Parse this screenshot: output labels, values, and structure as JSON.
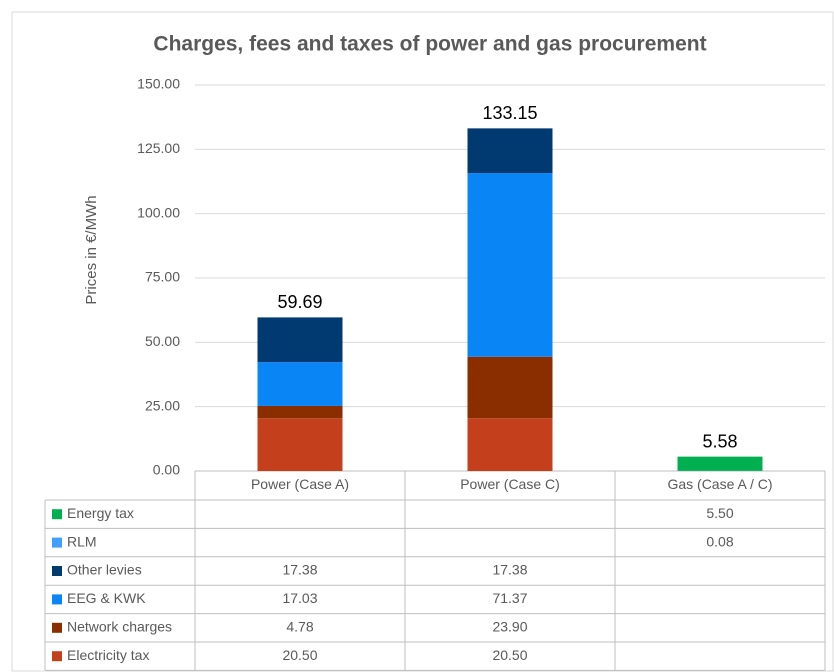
{
  "chart_data": {
    "type": "bar",
    "stacked": true,
    "title": "Charges, fees and taxes of power and gas procurement",
    "ylabel": "Prices in €/MWh",
    "categories": [
      "Power (Case A)",
      "Power (Case C)",
      "Gas (Case A / C)"
    ],
    "series": [
      {
        "name": "Energy tax",
        "color": "#00b050",
        "values": [
          null,
          null,
          5.5
        ],
        "value_labels": [
          null,
          null,
          "5.50"
        ]
      },
      {
        "name": "RLM",
        "color": "#3fa0ff",
        "values": [
          null,
          null,
          0.08
        ],
        "value_labels": [
          null,
          null,
          "0.08"
        ]
      },
      {
        "name": "Other levies",
        "color": "#003a70",
        "values": [
          17.38,
          17.38,
          null
        ],
        "value_labels": [
          "17.38",
          "17.38",
          null
        ]
      },
      {
        "name": "EEG & KWK",
        "color": "#0a85f5",
        "values": [
          17.03,
          71.37,
          null
        ],
        "value_labels": [
          "17.03",
          "71.37",
          null
        ]
      },
      {
        "name": "Network charges",
        "color": "#8a2e00",
        "values": [
          4.78,
          23.9,
          null
        ],
        "value_labels": [
          "4.78",
          "23.90",
          null
        ]
      },
      {
        "name": "Electricity tax",
        "color": "#c4401c",
        "values": [
          20.5,
          20.5,
          null
        ],
        "value_labels": [
          "20.50",
          "20.50",
          null
        ]
      }
    ],
    "totals": [
      59.69,
      133.15,
      5.58
    ],
    "ylim": [
      0,
      150
    ],
    "yticks": [
      {
        "value": 0,
        "label": "0.00"
      },
      {
        "value": 25,
        "label": "25.00"
      },
      {
        "value": 50,
        "label": "50.00"
      },
      {
        "value": 75,
        "label": "75.00"
      },
      {
        "value": 100,
        "label": "100.00"
      },
      {
        "value": 125,
        "label": "125.00"
      },
      {
        "value": 150,
        "label": "150.00"
      }
    ],
    "grid": true
  }
}
